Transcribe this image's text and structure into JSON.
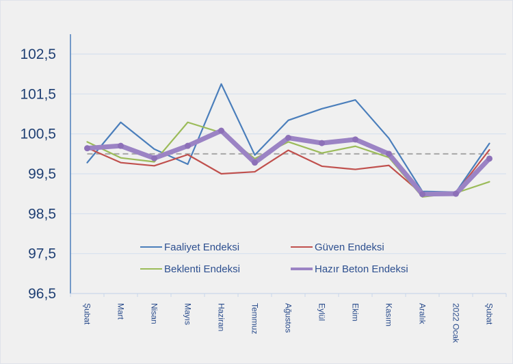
{
  "chart_data": {
    "type": "line",
    "title": "",
    "xlabel": "",
    "ylabel": "",
    "categories": [
      "Şubat",
      "Mart",
      "Nisan",
      "Mayıs",
      "Haziran",
      "Temmuz",
      "Ağustos",
      "Eylül",
      "Ekim",
      "Kasım",
      "Aralık",
      "2022 Ocak",
      "Şubat"
    ],
    "ylim": [
      96.5,
      102.5
    ],
    "yticks": [
      102.5,
      101.5,
      100.5,
      99.5,
      98.5,
      97.5,
      96.5
    ],
    "ytick_labels": [
      "102,5",
      "101,5",
      "100,5",
      "99,5",
      "98,5",
      "97,5",
      "96,5"
    ],
    "grid": true,
    "reference_line": {
      "value": 100.0,
      "style": "dashed",
      "color": "#a6a6a6"
    },
    "legend_position": "bottom-center (inside plot)",
    "series": [
      {
        "name": "Faaliyet Endeksi",
        "color": "#4a7ebb",
        "values": [
          99.78,
          100.79,
          100.12,
          99.74,
          101.75,
          99.97,
          100.84,
          101.13,
          101.35,
          100.39,
          99.06,
          99.04,
          100.26
        ]
      },
      {
        "name": "Güven Endeksi",
        "color": "#c0504d",
        "values": [
          100.15,
          99.78,
          99.7,
          99.98,
          99.5,
          99.55,
          100.09,
          99.69,
          99.61,
          99.71,
          98.99,
          99.02,
          100.1
        ]
      },
      {
        "name": "Beklenti Endeksi",
        "color": "#9bbb59",
        "values": [
          100.3,
          99.9,
          99.8,
          100.79,
          100.53,
          99.88,
          100.3,
          100.02,
          100.19,
          99.91,
          98.92,
          99.02,
          99.3
        ]
      },
      {
        "name": "Hazır Beton Endeksi",
        "color": "#9b83c4",
        "values": [
          100.14,
          100.2,
          99.89,
          100.2,
          100.58,
          99.78,
          100.4,
          100.27,
          100.36,
          100.0,
          98.99,
          99.0,
          99.88
        ]
      }
    ]
  }
}
